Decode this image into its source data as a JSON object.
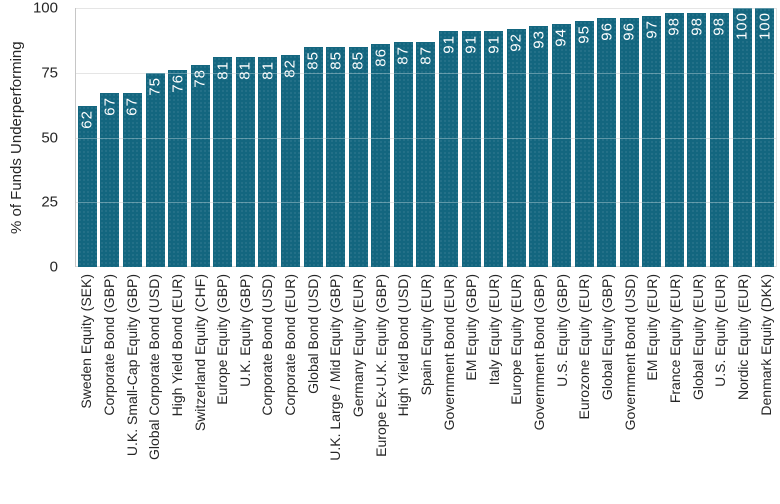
{
  "chart_data": {
    "type": "bar",
    "title": "",
    "xlabel": "",
    "ylabel": "% of Funds Underperforming",
    "ylim": [
      0,
      100
    ],
    "yticks": [
      0,
      25,
      50,
      75,
      100
    ],
    "grid": true,
    "legend": "none",
    "bar_color": "#13667f",
    "value_label_color": "#ffffff",
    "gridline_color": "#d9d9d9",
    "categories": [
      "Sweden Equity (SEK)",
      "Corporate Bond (GBP)",
      "U.K. Small-Cap Equity (GBP)",
      "Global Corporate Bond (USD)",
      "High Yield Bond (EUR)",
      "Switzerland Equity (CHF)",
      "Europe Equity (GBP)",
      "U.K. Equity (GBP)",
      "Corporate Bond (USD)",
      "Corporate Bond (EUR)",
      "Global Bond (USD)",
      "U.K. Large / Mid Equity (GBP)",
      "Germany Equity (EUR)",
      "Europe Ex-U.K. Equity (GBP)",
      "High Yield Bond (USD)",
      "Spain Equity (EUR)",
      "Government Bond (EUR)",
      "EM Equity (GBP)",
      "Italy Equity (EUR)",
      "Europe Equity (EUR)",
      "Government Bond (GBP)",
      "U.S. Equity (GBP)",
      "Eurozone Equity (EUR)",
      "Global Equity (GBP)",
      "Government Bond (USD)",
      "EM Equity (EUR)",
      "France Equity (EUR)",
      "Global Equity (EUR)",
      "U.S. Equity (EUR)",
      "Nordic Equity (EUR)",
      "Denmark Equity (DKK)"
    ],
    "values": [
      62,
      67,
      67,
      75,
      76,
      78,
      81,
      81,
      81,
      82,
      85,
      85,
      85,
      86,
      87,
      87,
      91,
      91,
      91,
      92,
      93,
      94,
      95,
      96,
      96,
      97,
      98,
      98,
      98,
      100,
      100
    ]
  }
}
